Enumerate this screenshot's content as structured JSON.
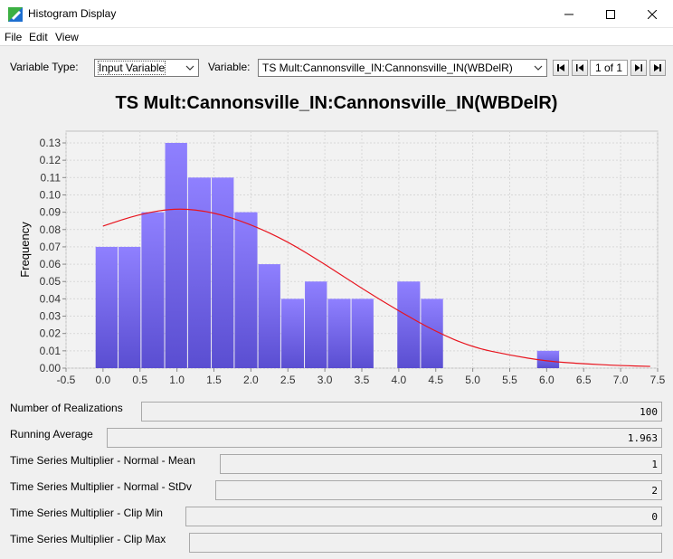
{
  "window": {
    "title": "Histogram Display",
    "controls": [
      "minimize",
      "maximize",
      "close"
    ]
  },
  "menu": {
    "items": [
      "File",
      "Edit",
      "View"
    ]
  },
  "controls": {
    "variable_type_label": "Variable Type:",
    "variable_type_value": "Input Variable",
    "variable_label": "Variable:",
    "variable_value": "TS Mult:Cannonsville_IN:Cannonsville_IN(WBDelR)",
    "page_indicator": "1 of 1"
  },
  "chart_data": {
    "type": "bar",
    "title": "TS Mult:Cannonsville_IN:Cannonsville_IN(WBDelR)",
    "ylabel": "Frequency",
    "xlabel": "",
    "xlim": [
      -0.5,
      7.5
    ],
    "ylim": [
      0,
      0.13
    ],
    "grid": true,
    "x_ticks": [
      "-0.5",
      "0.0",
      "0.5",
      "1.0",
      "1.5",
      "2.0",
      "2.5",
      "3.0",
      "3.5",
      "4.0",
      "4.5",
      "5.0",
      "5.5",
      "6.0",
      "6.5",
      "7.0",
      "7.5"
    ],
    "y_ticks": [
      "0.00",
      "0.01",
      "0.02",
      "0.03",
      "0.04",
      "0.05",
      "0.06",
      "0.07",
      "0.08",
      "0.09",
      "0.10",
      "0.11",
      "0.12",
      "0.13"
    ],
    "bars": [
      {
        "x0": -0.1,
        "x1": 0.21,
        "value": 0.07
      },
      {
        "x0": 0.21,
        "x1": 0.52,
        "value": 0.07
      },
      {
        "x0": 0.52,
        "x1": 0.84,
        "value": 0.09
      },
      {
        "x0": 0.84,
        "x1": 1.15,
        "value": 0.13
      },
      {
        "x0": 1.15,
        "x1": 1.47,
        "value": 0.11
      },
      {
        "x0": 1.47,
        "x1": 1.78,
        "value": 0.11
      },
      {
        "x0": 1.78,
        "x1": 2.1,
        "value": 0.09
      },
      {
        "x0": 2.1,
        "x1": 2.41,
        "value": 0.06
      },
      {
        "x0": 2.41,
        "x1": 2.73,
        "value": 0.04
      },
      {
        "x0": 2.73,
        "x1": 3.04,
        "value": 0.05
      },
      {
        "x0": 3.04,
        "x1": 3.36,
        "value": 0.04
      },
      {
        "x0": 3.36,
        "x1": 3.67,
        "value": 0.04
      },
      {
        "x0": 3.98,
        "x1": 4.3,
        "value": 0.05
      },
      {
        "x0": 4.3,
        "x1": 4.61,
        "value": 0.04
      },
      {
        "x0": 5.87,
        "x1": 6.18,
        "value": 0.01
      }
    ],
    "curve": {
      "color": "#e8141e",
      "points": [
        [
          0.0,
          0.082
        ],
        [
          0.5,
          0.089
        ],
        [
          1.0,
          0.0925
        ],
        [
          1.5,
          0.09
        ],
        [
          2.0,
          0.083
        ],
        [
          2.5,
          0.073
        ],
        [
          3.0,
          0.06
        ],
        [
          3.5,
          0.046
        ],
        [
          4.0,
          0.033
        ],
        [
          4.5,
          0.021
        ],
        [
          5.0,
          0.012
        ],
        [
          5.5,
          0.0075
        ],
        [
          6.0,
          0.004
        ],
        [
          6.5,
          0.0025
        ],
        [
          7.0,
          0.0015
        ],
        [
          7.4,
          0.001
        ]
      ]
    },
    "bar_color_top": "#8f80ff",
    "bar_color_bottom": "#5a4ed1"
  },
  "fields": [
    {
      "label": "Number of Realizations",
      "value": "100"
    },
    {
      "label": "Running Average",
      "value": "1.963"
    },
    {
      "label": "Time Series Multiplier - Normal - Mean",
      "value": "1"
    },
    {
      "label": "Time Series Multiplier - Normal - StDv",
      "value": "2"
    },
    {
      "label": "Time Series Multiplier - Clip Min",
      "value": "0"
    },
    {
      "label": "Time Series Multiplier - Clip Max",
      "value": ""
    }
  ]
}
